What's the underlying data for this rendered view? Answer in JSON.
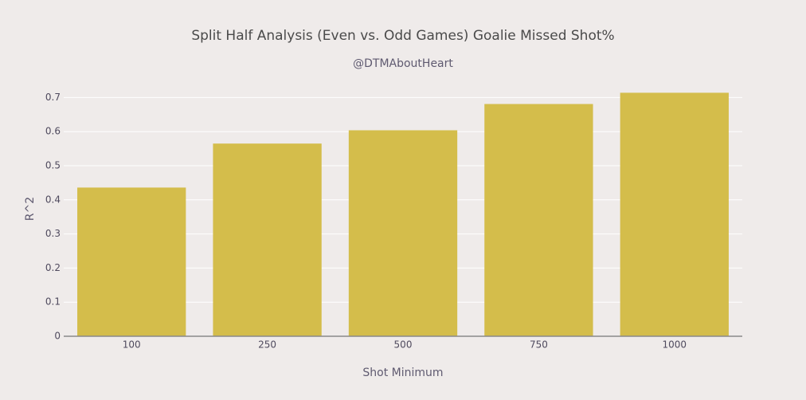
{
  "chart_data": {
    "type": "bar",
    "title": "Split Half Analysis (Even vs. Odd Games) Goalie Missed Shot%",
    "subtitle": "@DTMAboutHeart",
    "x_label": "Shot Minimum",
    "y_label": "R^2",
    "categories": [
      "100",
      "250",
      "500",
      "750",
      "1000"
    ],
    "values": [
      0.436,
      0.565,
      0.604,
      0.681,
      0.714
    ],
    "color": "#d4bd4b",
    "ylim": [
      0,
      0.75
    ],
    "yticks": [
      0,
      0.1,
      0.2,
      0.3,
      0.4,
      0.5,
      0.6,
      0.7
    ],
    "grid": true
  }
}
